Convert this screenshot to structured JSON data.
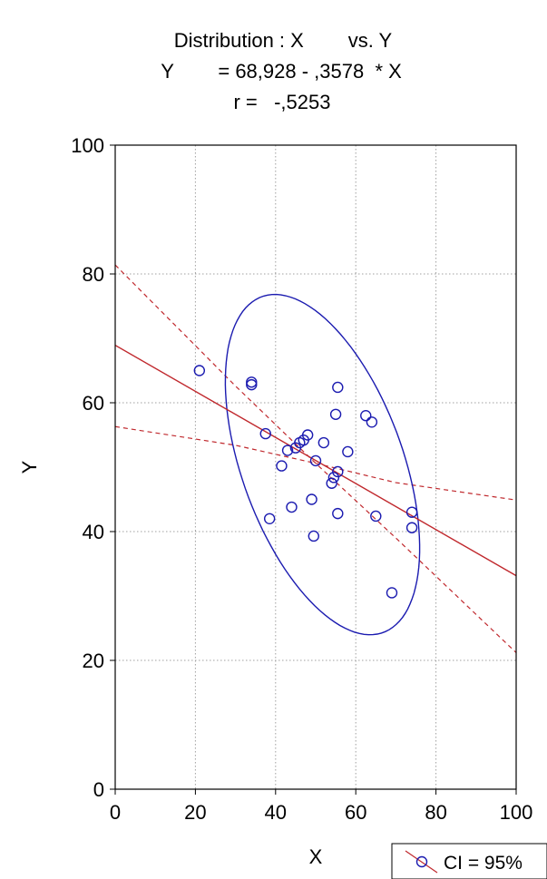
{
  "chart_data": {
    "type": "scatter",
    "title_lines": [
      "Distribution : X        vs. Y",
      "Y        = 68,928 - ,3578  * X",
      "r =   -,5253"
    ],
    "xlabel": "X",
    "ylabel": "Y",
    "xlim": [
      0,
      100
    ],
    "ylim": [
      0,
      100
    ],
    "xticks": [
      "0",
      "20",
      "40",
      "60",
      "80",
      "100"
    ],
    "yticks": [
      "0",
      "20",
      "40",
      "60",
      "80",
      "100"
    ],
    "grid": true,
    "legend": {
      "placement": "bottom-right",
      "label": "CI = 95%"
    },
    "colors": {
      "points": "#1b1bb0",
      "ellipse": "#1b1bb0",
      "regression": "#c0282d",
      "grid": "#a0a0a0"
    },
    "regression": {
      "intercept": 68.928,
      "slope": -0.3578
    },
    "confidence_band": {
      "level": 0.95,
      "lower": [
        [
          0,
          56.3
        ],
        [
          30,
          53.4
        ],
        [
          50,
          50.6
        ],
        [
          70,
          47.6
        ],
        [
          100,
          44.9
        ]
      ],
      "upper": [
        [
          0,
          81.4
        ],
        [
          30,
          62.6
        ],
        [
          50,
          50.6
        ],
        [
          70,
          39.0
        ],
        [
          100,
          21.2
        ]
      ]
    },
    "confidence_ellipse": {
      "center": [
        51.7,
        50.4
      ],
      "semi_major": 31,
      "semi_minor": 18,
      "angle_deg": -50
    },
    "points": [
      [
        21,
        65
      ],
      [
        34,
        63.2
      ],
      [
        34,
        62.8
      ],
      [
        37.5,
        55.2
      ],
      [
        38.5,
        42
      ],
      [
        41.5,
        50.2
      ],
      [
        43,
        52.6
      ],
      [
        44,
        43.8
      ],
      [
        45,
        53
      ],
      [
        46,
        53.8
      ],
      [
        47,
        54.2
      ],
      [
        48,
        55
      ],
      [
        49,
        45
      ],
      [
        49.5,
        39.3
      ],
      [
        50,
        51
      ],
      [
        52,
        53.8
      ],
      [
        54,
        47.5
      ],
      [
        54.5,
        48.4
      ],
      [
        55,
        58.2
      ],
      [
        55.5,
        42.8
      ],
      [
        55.5,
        49.3
      ],
      [
        55.5,
        62.4
      ],
      [
        58,
        52.4
      ],
      [
        62.5,
        58
      ],
      [
        64,
        57
      ],
      [
        65,
        42.4
      ],
      [
        69,
        30.5
      ],
      [
        74,
        43
      ],
      [
        74,
        40.6
      ]
    ]
  }
}
